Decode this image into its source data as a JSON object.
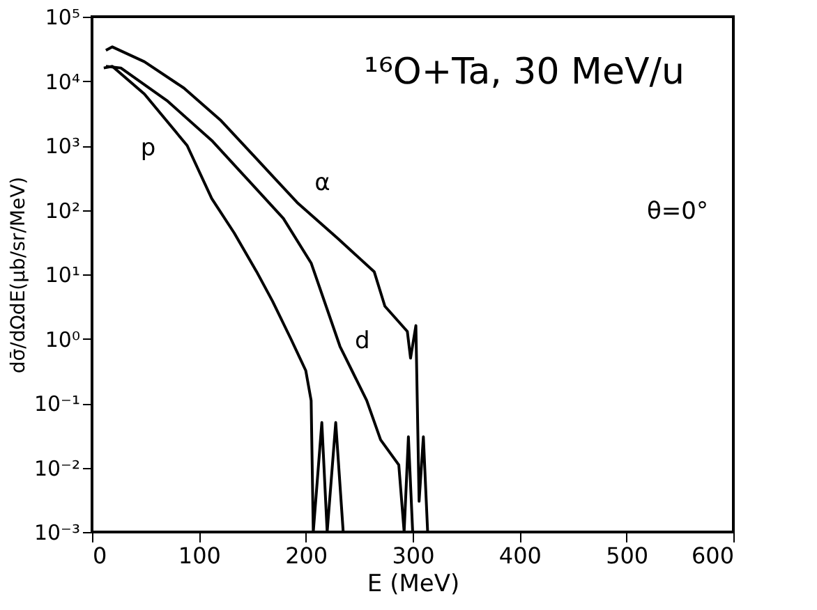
{
  "chart_data": {
    "type": "line",
    "xlabel": "E  (MeV)",
    "ylabel": "dσ̄/dΩdE(μb/sr/MeV)",
    "annotations": [
      "¹⁶O+Ta, 30 MeV/u",
      "θ=0°"
    ],
    "log": "y",
    "grid": false,
    "legend": false,
    "marker": "none",
    "line_style": "solid",
    "xlim": [
      0,
      600
    ],
    "xticks": [
      0,
      100,
      200,
      300,
      400,
      500,
      600
    ],
    "ylim": [
      0.001,
      100000
    ],
    "yticks": [
      {
        "value": 0.001,
        "label": "10⁻³"
      },
      {
        "value": 0.01,
        "label": "10⁻²"
      },
      {
        "value": 0.1,
        "label": "10⁻¹"
      },
      {
        "value": 1,
        "label": "10⁰"
      },
      {
        "value": 10,
        "label": "10¹"
      },
      {
        "value": 100,
        "label": "10²"
      },
      {
        "value": 1000,
        "label": "10³"
      },
      {
        "value": 10000,
        "label": "10⁴"
      },
      {
        "value": 100000,
        "label": "10⁵"
      }
    ],
    "series": [
      {
        "name": "p",
        "color": "#000000",
        "x": [
          11,
          19,
          49,
          89,
          112,
          133,
          154,
          169,
          186,
          200,
          205,
          207,
          215,
          220,
          228,
          235
        ],
        "values": [
          16000,
          17000,
          6300,
          1000,
          150,
          44,
          11,
          3.8,
          1.0,
          0.32,
          0.11,
          0.001,
          0.05,
          0.001,
          0.05,
          0.001
        ]
      },
      {
        "name": "d",
        "color": "#000000",
        "x": [
          13,
          27,
          70,
          112,
          141,
          179,
          205,
          232,
          257,
          270,
          287,
          292,
          296,
          300
        ],
        "values": [
          17000,
          16000,
          5000,
          1200,
          360,
          74,
          15,
          0.76,
          0.11,
          0.027,
          0.011,
          0.001,
          0.03,
          0.001
        ]
      },
      {
        "name": "α",
        "color": "#000000",
        "x": [
          13,
          19,
          49,
          86,
          120,
          154,
          192,
          230,
          264,
          274,
          295,
          298,
          303,
          306,
          310,
          314
        ],
        "values": [
          30000,
          34000,
          20000,
          7800,
          2500,
          620,
          130,
          36,
          11,
          3.2,
          1.3,
          0.5,
          1.6,
          0.003,
          0.03,
          0.001
        ]
      }
    ]
  }
}
